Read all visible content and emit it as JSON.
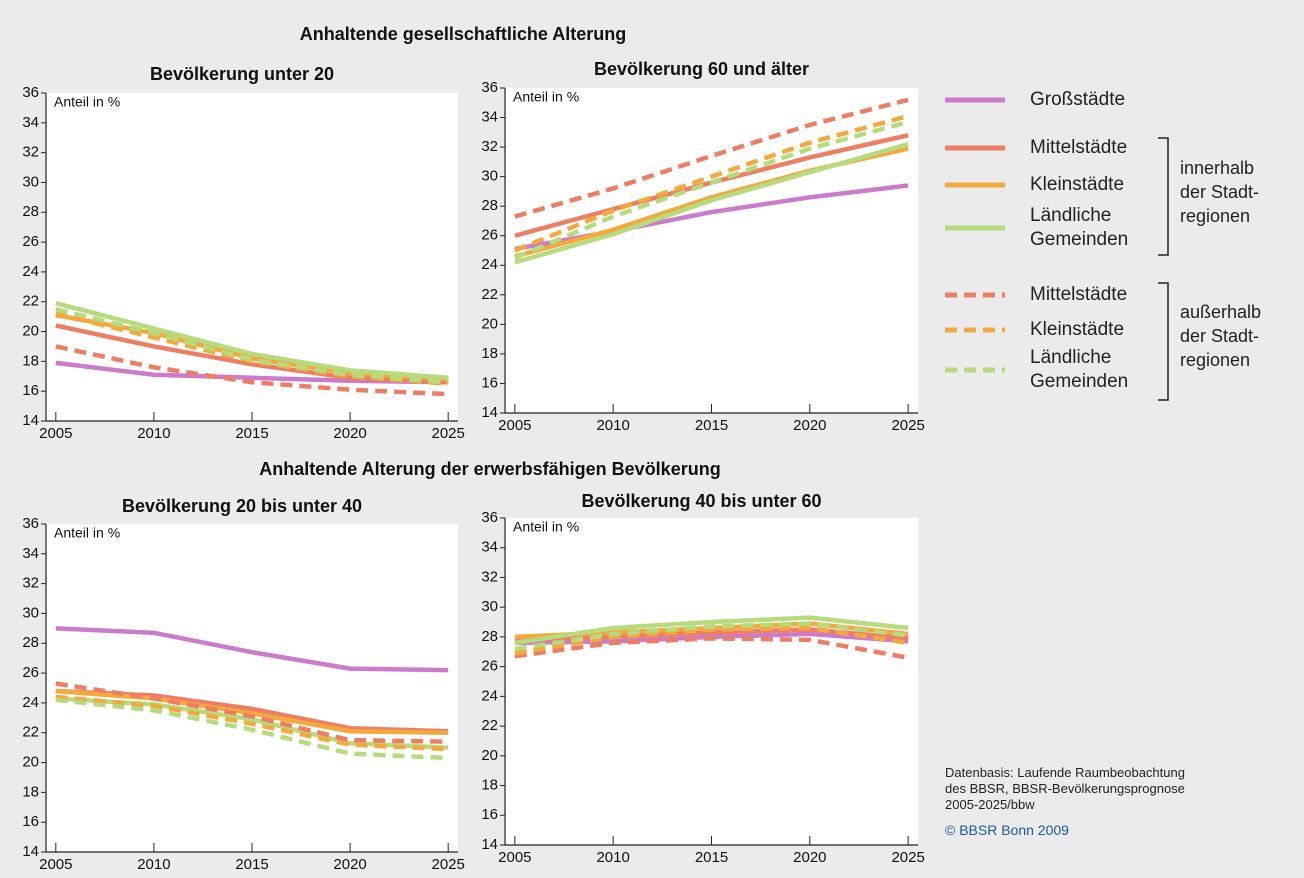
{
  "headings": [
    "Anhaltende gesellschaftliche Alterung",
    "Anhaltende Alterung der erwerbsfähigen Bevölkerung"
  ],
  "chart_data": [
    {
      "type": "line",
      "title": "Bevölkerung unter 20",
      "ylabel": "Anteil in %",
      "x": [
        2005,
        2010,
        2015,
        2020,
        2025
      ],
      "xlim": [
        2004.5,
        2025.5
      ],
      "xticks": [
        2005,
        2010,
        2015,
        2020,
        2025
      ],
      "ylim": [
        14,
        36
      ],
      "yticks": [
        14,
        16,
        18,
        20,
        22,
        24,
        26,
        28,
        30,
        32,
        34,
        36
      ],
      "series": [
        {
          "name": "Großstädte",
          "color": "#cc7acb",
          "dashed": false,
          "values": [
            17.9,
            17.1,
            16.9,
            16.7,
            16.6
          ]
        },
        {
          "name": "Mittelstädte",
          "color": "#ef7d62",
          "dashed": false,
          "values": [
            20.4,
            19.0,
            17.8,
            16.9,
            16.6
          ]
        },
        {
          "name": "Kleinstädte",
          "color": "#f3a93b",
          "dashed": false,
          "values": [
            21.1,
            19.9,
            18.2,
            17.2,
            16.8
          ]
        },
        {
          "name": "Ländliche Gemeinden",
          "color": "#b6db7d",
          "dashed": false,
          "values": [
            21.9,
            20.2,
            18.5,
            17.4,
            16.9
          ]
        },
        {
          "name": "Mittelstädte",
          "color": "#ef7d62",
          "dashed": true,
          "values": [
            19.0,
            17.6,
            16.6,
            16.1,
            15.8
          ]
        },
        {
          "name": "Kleinstädte",
          "color": "#f3a93b",
          "dashed": true,
          "values": [
            21.2,
            19.6,
            18.0,
            17.0,
            16.5
          ]
        },
        {
          "name": "Ländliche Gemeinden",
          "color": "#b6db7d",
          "dashed": true,
          "values": [
            21.5,
            19.9,
            18.1,
            17.1,
            16.6
          ]
        }
      ]
    },
    {
      "type": "line",
      "title": "Bevölkerung 60 und älter",
      "ylabel": "Anteil in %",
      "x": [
        2005,
        2010,
        2015,
        2020,
        2025
      ],
      "xlim": [
        2004.5,
        2025.5
      ],
      "xticks": [
        2005,
        2010,
        2015,
        2020,
        2025
      ],
      "ylim": [
        14,
        36
      ],
      "yticks": [
        14,
        16,
        18,
        20,
        22,
        24,
        26,
        28,
        30,
        32,
        34,
        36
      ],
      "series": [
        {
          "name": "Großstädte",
          "color": "#cc7acb",
          "dashed": false,
          "values": [
            25.1,
            26.3,
            27.6,
            28.6,
            29.4
          ]
        },
        {
          "name": "Mittelstädte",
          "color": "#ef7d62",
          "dashed": false,
          "values": [
            26.0,
            27.8,
            29.6,
            31.3,
            32.8
          ]
        },
        {
          "name": "Kleinstädte",
          "color": "#f3a93b",
          "dashed": false,
          "values": [
            24.6,
            26.4,
            28.6,
            30.4,
            31.9
          ]
        },
        {
          "name": "Ländliche Gemeinden",
          "color": "#b6db7d",
          "dashed": false,
          "values": [
            24.2,
            26.1,
            28.4,
            30.3,
            32.2
          ]
        },
        {
          "name": "Mittelstädte",
          "color": "#ef7d62",
          "dashed": true,
          "values": [
            27.3,
            29.2,
            31.4,
            33.5,
            35.2
          ]
        },
        {
          "name": "Kleinstädte",
          "color": "#f3a93b",
          "dashed": true,
          "values": [
            25.0,
            27.7,
            30.0,
            32.3,
            34.1
          ]
        },
        {
          "name": "Ländliche Gemeinden",
          "color": "#b6db7d",
          "dashed": true,
          "values": [
            24.5,
            27.3,
            29.6,
            31.9,
            33.7
          ]
        }
      ]
    },
    {
      "type": "line",
      "title": "Bevölkerung 20 bis unter 40",
      "ylabel": "Anteil in %",
      "x": [
        2005,
        2010,
        2015,
        2020,
        2025
      ],
      "xlim": [
        2004.5,
        2025.5
      ],
      "xticks": [
        2005,
        2010,
        2015,
        2020,
        2025
      ],
      "ylim": [
        14,
        36
      ],
      "yticks": [
        14,
        16,
        18,
        20,
        22,
        24,
        26,
        28,
        30,
        32,
        34,
        36
      ],
      "series": [
        {
          "name": "Großstädte",
          "color": "#cc7acb",
          "dashed": false,
          "values": [
            29.0,
            28.7,
            27.4,
            26.3,
            26.2
          ]
        },
        {
          "name": "Mittelstädte",
          "color": "#ef7d62",
          "dashed": false,
          "values": [
            24.8,
            24.5,
            23.6,
            22.3,
            22.1
          ]
        },
        {
          "name": "Kleinstädte",
          "color": "#f3a93b",
          "dashed": false,
          "values": [
            24.8,
            24.3,
            23.3,
            22.1,
            22.0
          ]
        },
        {
          "name": "Ländliche Gemeinden",
          "color": "#b6db7d",
          "dashed": false,
          "values": [
            24.3,
            23.9,
            22.9,
            21.3,
            21.0
          ]
        },
        {
          "name": "Mittelstädte",
          "color": "#ef7d62",
          "dashed": true,
          "values": [
            25.3,
            24.3,
            23.1,
            21.5,
            21.4
          ]
        },
        {
          "name": "Kleinstädte",
          "color": "#f3a93b",
          "dashed": true,
          "values": [
            24.4,
            23.8,
            22.6,
            21.2,
            20.9
          ]
        },
        {
          "name": "Ländliche Gemeinden",
          "color": "#b6db7d",
          "dashed": true,
          "values": [
            24.2,
            23.5,
            22.2,
            20.6,
            20.3
          ]
        }
      ]
    },
    {
      "type": "line",
      "title": "Bevölkerung 40 bis unter 60",
      "ylabel": "Anteil in %",
      "x": [
        2005,
        2010,
        2015,
        2020,
        2025
      ],
      "xlim": [
        2004.5,
        2025.5
      ],
      "xticks": [
        2005,
        2010,
        2015,
        2020,
        2025
      ],
      "ylim": [
        14,
        36
      ],
      "yticks": [
        14,
        16,
        18,
        20,
        22,
        24,
        26,
        28,
        30,
        32,
        34,
        36
      ],
      "series": [
        {
          "name": "Großstädte",
          "color": "#cc7acb",
          "dashed": false,
          "values": [
            27.6,
            27.7,
            28.0,
            28.2,
            27.7
          ]
        },
        {
          "name": "Mittelstädte",
          "color": "#ef7d62",
          "dashed": false,
          "values": [
            27.8,
            28.0,
            28.3,
            28.5,
            27.9
          ]
        },
        {
          "name": "Kleinstädte",
          "color": "#f3a93b",
          "dashed": false,
          "values": [
            28.0,
            28.3,
            28.6,
            28.9,
            28.2
          ]
        },
        {
          "name": "Ländliche Gemeinden",
          "color": "#b6db7d",
          "dashed": false,
          "values": [
            27.6,
            28.6,
            29.0,
            29.3,
            28.6
          ]
        },
        {
          "name": "Mittelstädte",
          "color": "#ef7d62",
          "dashed": true,
          "values": [
            26.7,
            27.6,
            27.9,
            27.8,
            26.6
          ]
        },
        {
          "name": "Kleinstädte",
          "color": "#f3a93b",
          "dashed": true,
          "values": [
            26.9,
            28.0,
            28.5,
            28.6,
            27.6
          ]
        },
        {
          "name": "Ländliche Gemeinden",
          "color": "#b6db7d",
          "dashed": true,
          "values": [
            27.2,
            28.2,
            28.7,
            28.9,
            28.1
          ]
        }
      ]
    }
  ],
  "legend_groups": [
    "innerhalb der Stadt-regionen",
    "außerhalb der Stadt-regionen"
  ],
  "source": [
    "Datenbasis: Laufende Raumbeobachtung",
    "des BBSR, BBSR-Bevölkerungsprognose",
    "2005-2025/bbw"
  ],
  "copyright": "© BBSR Bonn 2009"
}
